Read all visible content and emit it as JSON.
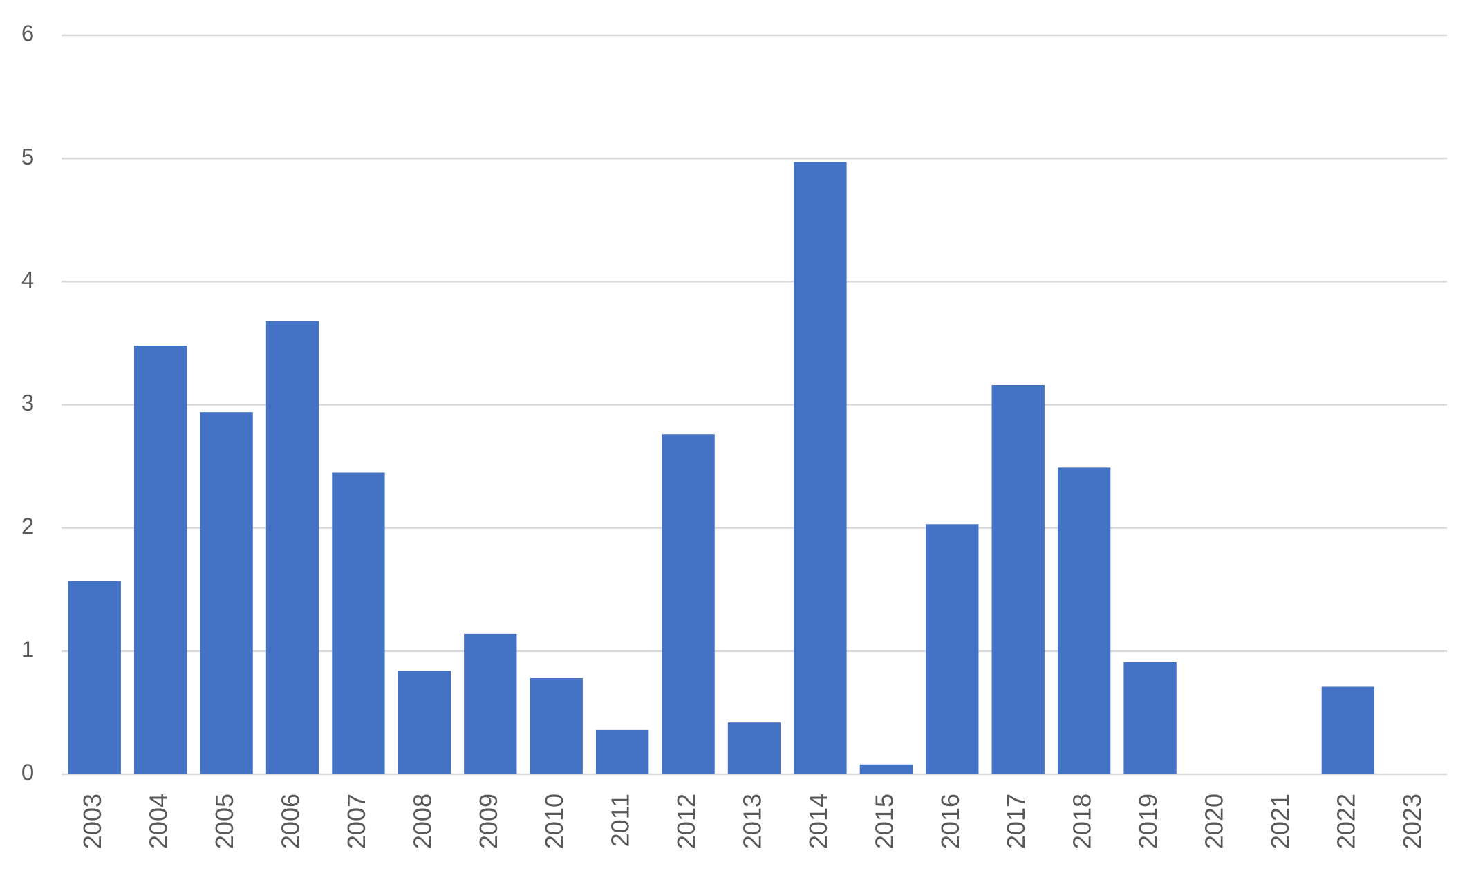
{
  "chart_data": {
    "type": "bar",
    "categories": [
      "2003",
      "2004",
      "2005",
      "2006",
      "2007",
      "2008",
      "2009",
      "2010",
      "2011",
      "2012",
      "2013",
      "2014",
      "2015",
      "2016",
      "2017",
      "2018",
      "2019",
      "2020",
      "2021",
      "2022",
      "2023"
    ],
    "values": [
      1.57,
      3.48,
      2.94,
      3.68,
      2.45,
      0.84,
      1.14,
      0.78,
      0.36,
      2.76,
      0.42,
      4.97,
      0.08,
      2.03,
      3.16,
      2.49,
      0.91,
      0,
      0,
      0.71,
      0
    ],
    "color": "#4472c4",
    "ylim": [
      0,
      6
    ],
    "yticks": [
      0,
      1,
      2,
      3,
      4,
      5,
      6
    ],
    "grid": true
  }
}
